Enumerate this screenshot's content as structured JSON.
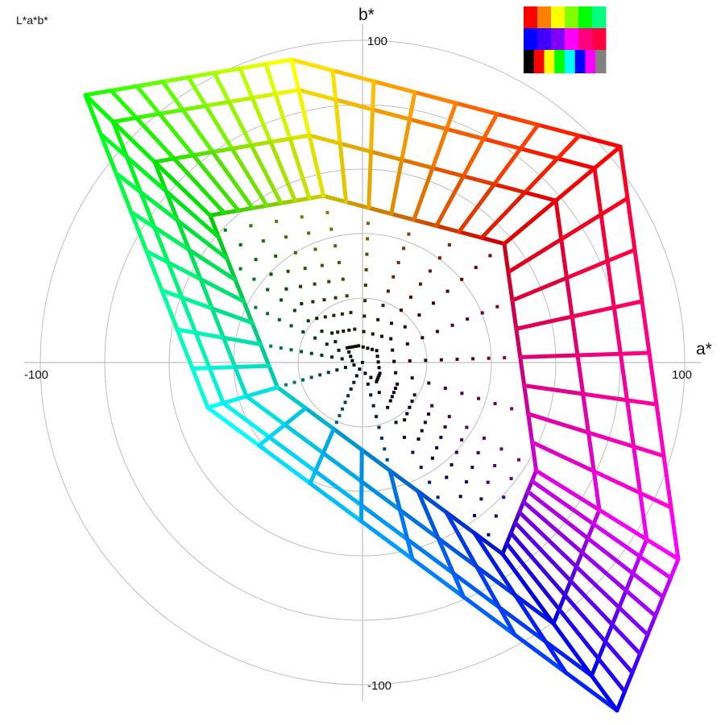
{
  "chart_data": {
    "type": "scatter",
    "title": "L*a*b*",
    "xlabel": "a*",
    "ylabel": "b*",
    "xlim": [
      -105,
      105
    ],
    "ylim": [
      -105,
      105
    ],
    "tick_labels": {
      "x_min": "-100",
      "x_max": "100",
      "y_min": "-100",
      "y_max": "100"
    },
    "polar_grid_radii": [
      20,
      40,
      60,
      80,
      100
    ],
    "hue_vertices": [
      {
        "name": "red",
        "color": "#ff0000",
        "a": 80,
        "b": 67
      },
      {
        "name": "yellow",
        "color": "#ffff00",
        "a": -22,
        "b": 94
      },
      {
        "name": "green",
        "color": "#00ff00",
        "a": -86,
        "b": 83
      },
      {
        "name": "cyan",
        "color": "#00ffff",
        "a": -48,
        "b": -14
      },
      {
        "name": "blue",
        "color": "#0000ff",
        "a": 79,
        "b": -108
      },
      {
        "name": "magenta",
        "color": "#ff00ff",
        "a": 98,
        "b": -61
      }
    ],
    "lightness_scales": [
      1.0,
      0.9,
      0.75,
      0.55
    ],
    "interpolation_steps": 8,
    "center": {
      "a": 0,
      "b": 0
    }
  },
  "palette_swatch": {
    "rows": [
      [
        "#ff0000",
        "#ff8000",
        "#ffff00",
        "#80ff00",
        "#00ff00",
        "#00ff80"
      ],
      [
        "#0000ff",
        "#4000ff",
        "#8000ff",
        "#ff00ff",
        "#ff0080",
        "#ff0040"
      ],
      [
        "#000000",
        "#ff0000",
        "#ffff00",
        "#00ff00",
        "#00ffff",
        "#0000ff",
        "#ff00ff",
        "#808080"
      ]
    ]
  }
}
